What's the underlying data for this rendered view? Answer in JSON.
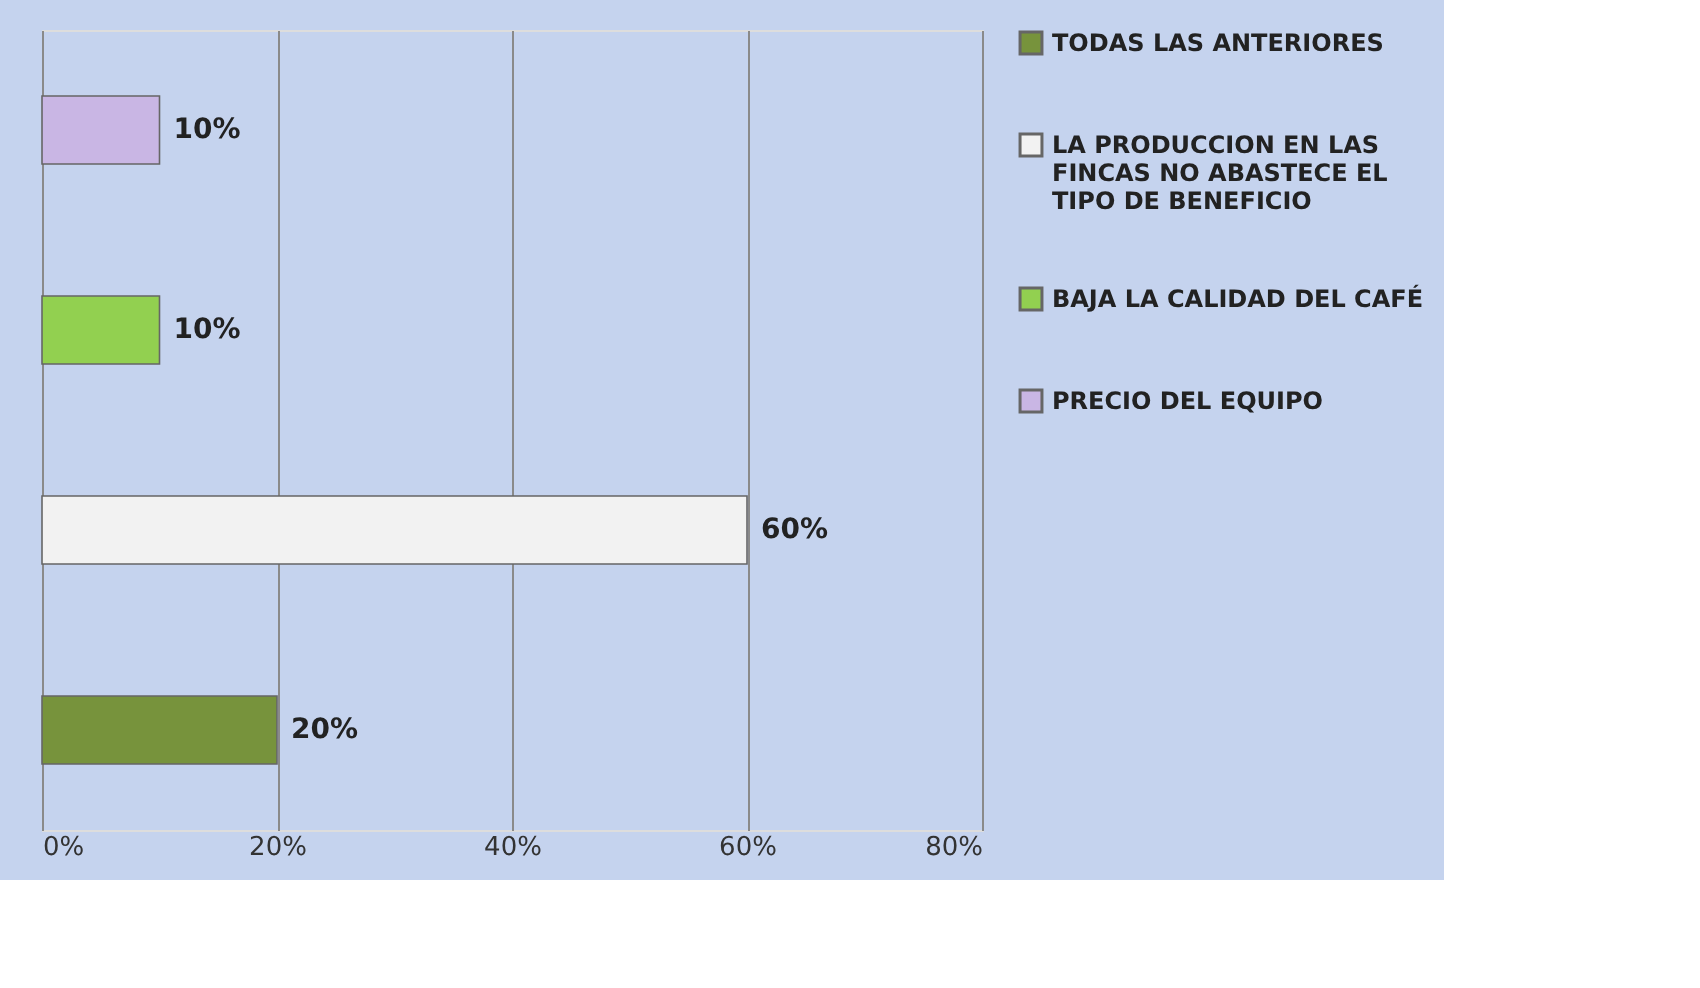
{
  "chart_data": {
    "type": "bar",
    "orientation": "horizontal",
    "categories": [
      null,
      null,
      null,
      null
    ],
    "series": [
      {
        "name": "TODAS LAS ANTERIORES",
        "color": "#77933c",
        "values": [
          null,
          null,
          null,
          20
        ],
        "value_labels": [
          null,
          null,
          null,
          "20%"
        ]
      },
      {
        "name": "LA PRODUCCION EN LAS FINCAS NO ABASTECE EL TIPO DE BENEFICIO",
        "color": "#f2f2f2",
        "values": [
          null,
          null,
          60,
          null
        ],
        "value_labels": [
          null,
          null,
          "60%",
          null
        ]
      },
      {
        "name": "BAJA LA CALIDAD DEL CAFÉ",
        "color": "#92d050",
        "values": [
          null,
          10,
          null,
          null
        ],
        "value_labels": [
          null,
          "10%",
          null,
          null
        ]
      },
      {
        "name": "PRECIO DEL EQUIPO",
        "color": "#c9b6e4",
        "values": [
          10,
          null,
          null,
          null
        ],
        "value_labels": [
          "10%",
          null,
          null,
          null
        ]
      }
    ],
    "xlim": [
      0,
      80
    ],
    "xticks": [
      {
        "value": 0,
        "label": "0%"
      },
      {
        "value": 20,
        "label": "20%"
      },
      {
        "value": 40,
        "label": "40%"
      },
      {
        "value": 60,
        "label": "60%"
      },
      {
        "value": 80,
        "label": "80%"
      }
    ],
    "grid": "x",
    "legend": "right",
    "tick_labels": "x"
  }
}
